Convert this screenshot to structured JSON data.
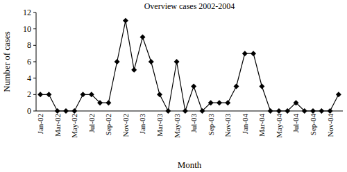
{
  "chart_data": {
    "type": "line",
    "title": "Overview cases 2002-2004",
    "x_label": "Month",
    "y_label": "Number of cases",
    "categories": [
      "Jan-02",
      null,
      "Mar-02",
      null,
      "May-02",
      null,
      "Jul-02",
      null,
      "Sep-02",
      null,
      "Nov-02",
      null,
      "Jan-03",
      null,
      "Mar-03",
      null,
      "May-03",
      null,
      "Jul-03",
      null,
      "Sep-03",
      null,
      "Nov-03",
      null,
      "Jan-04",
      null,
      "Mar-04",
      null,
      "May-04",
      null,
      "Jul-04",
      null,
      "Sep-04",
      null,
      "Nov-04",
      null
    ],
    "values": [
      2,
      2,
      0,
      0,
      0,
      2,
      2,
      1,
      1,
      6,
      11,
      5,
      9,
      6,
      2,
      0,
      6,
      0,
      3,
      0,
      1,
      1,
      1,
      3,
      7,
      7,
      3,
      0,
      0,
      0,
      1,
      0,
      0,
      0,
      0,
      2
    ],
    "color": "#000000",
    "marker": "diamond",
    "line_style": "solid",
    "ylim": [
      0,
      12
    ],
    "yticks": [
      0,
      2,
      4,
      6,
      8,
      10,
      12
    ],
    "grid": false
  }
}
